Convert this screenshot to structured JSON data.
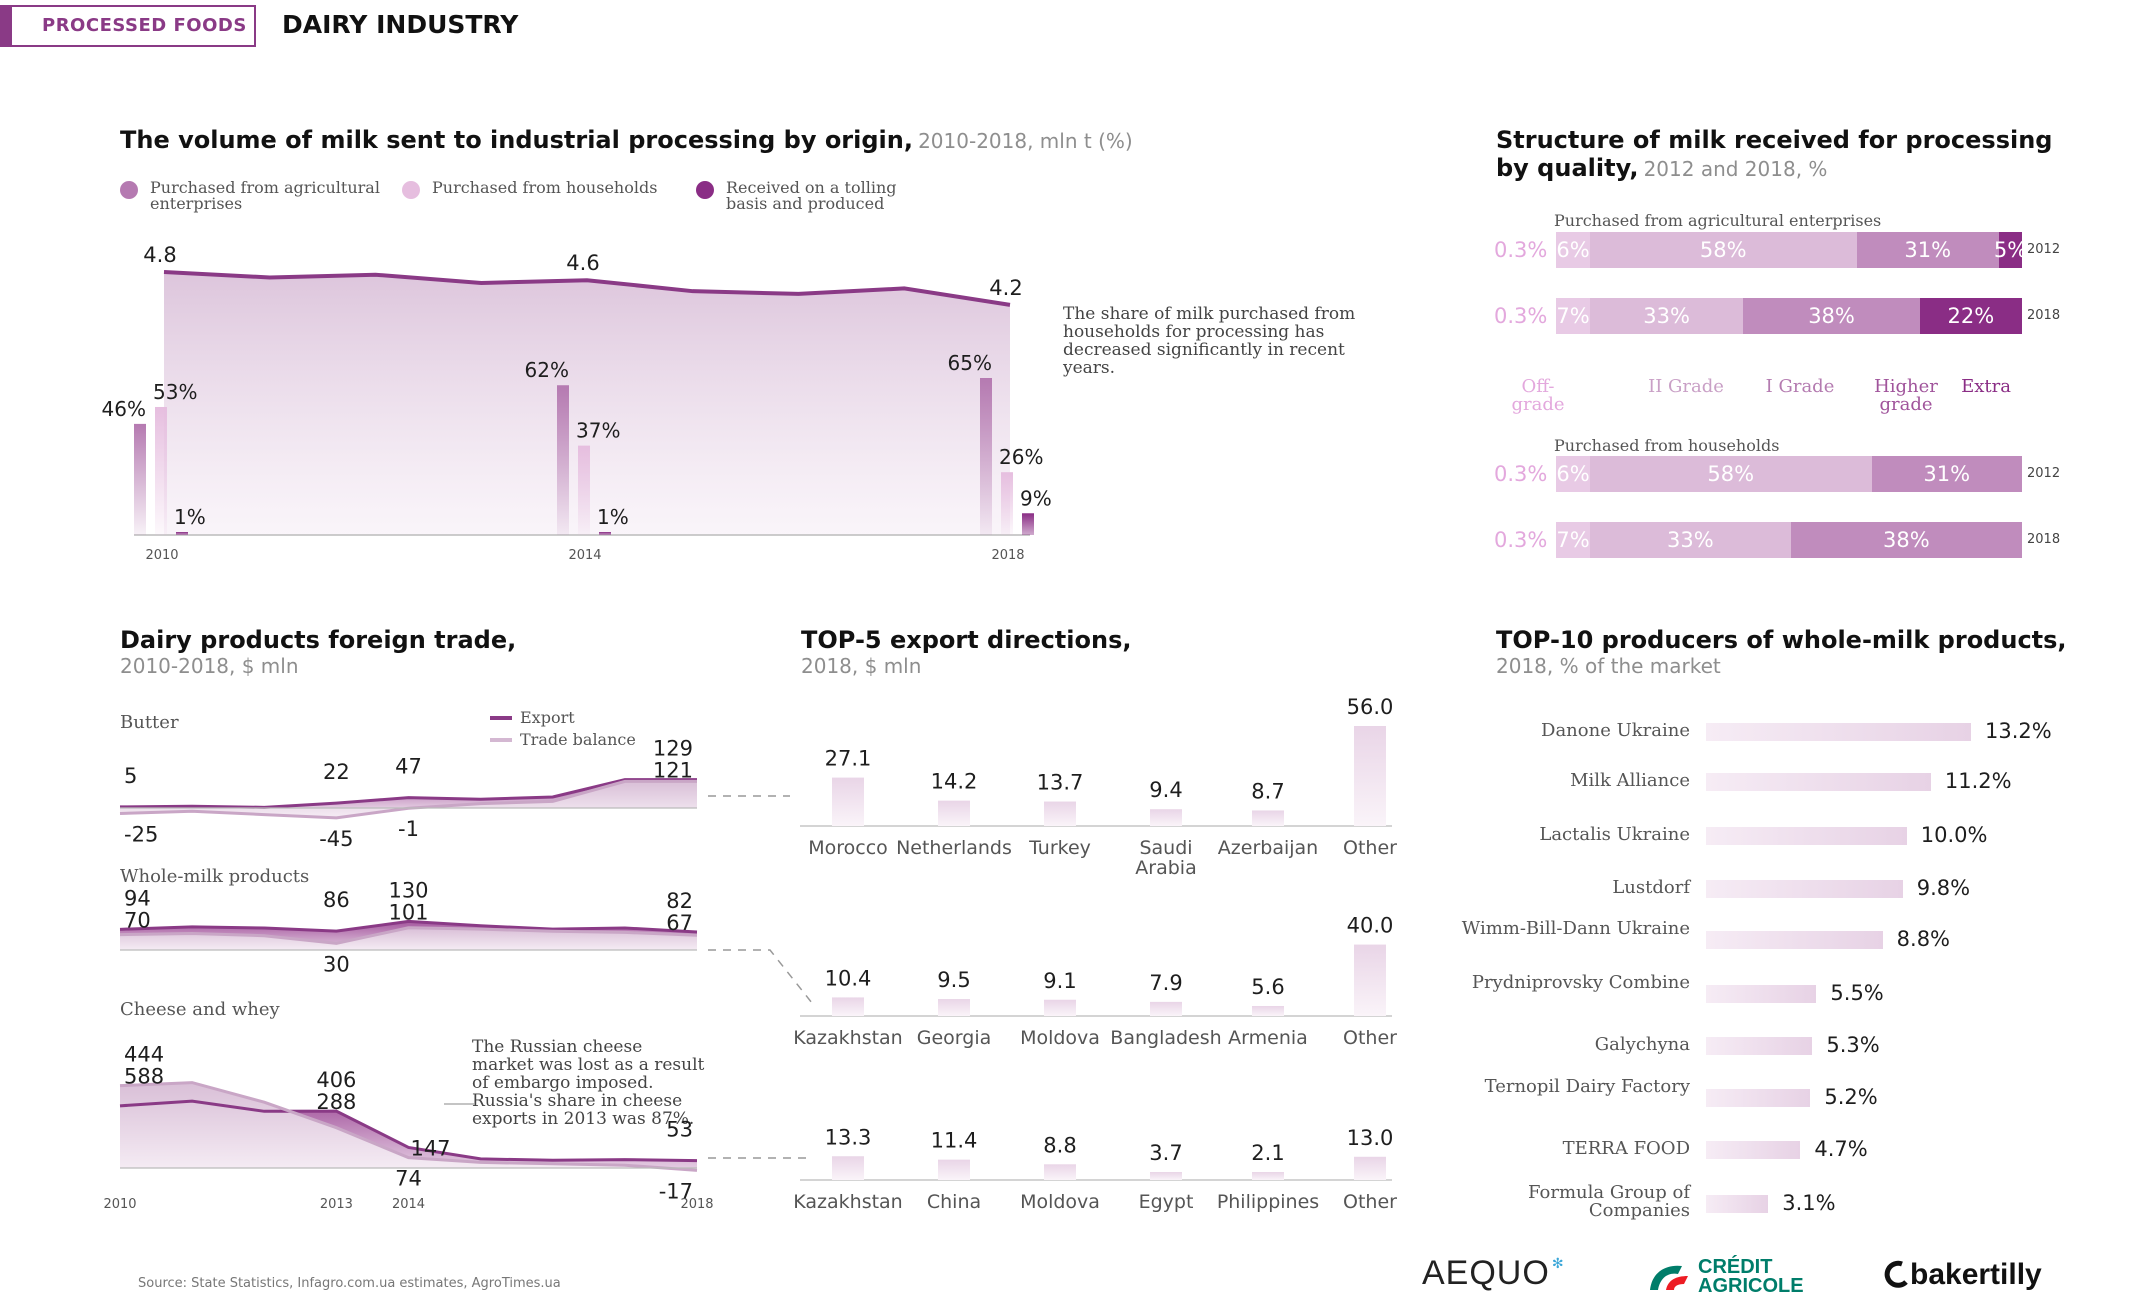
{
  "header": {
    "category": "PROCESSED FOODS",
    "title": "DAIRY INDUSTRY"
  },
  "volume": {
    "title": "The volume of milk sent to industrial processing by origin,",
    "subtitle": "2010-2018, mln t (%)",
    "legend": [
      {
        "label": "Purchased from agricultural enterprises",
        "color": "#b57ab1"
      },
      {
        "label": "Purchased from households",
        "color": "#e6bedf"
      },
      {
        "label": "Received on a tolling basis and produced",
        "color": "#8a2d85"
      }
    ],
    "note": "The share of milk purchased from households for processing has decreased significantly in recent years.",
    "colors": {
      "line": "#8a3a86",
      "area_top": "#ddc4dc",
      "bar_agri": "#b57ab1",
      "bar_house": "#e6bedf",
      "bar_toll": "#8a2d85"
    }
  },
  "quality": {
    "title": "Structure of milk received for processing",
    "title2": "by quality,",
    "subtitle": "2012 and 2018, %",
    "group1_title": "Purchased from agricultural enterprises",
    "group2_title": "Purchased from households",
    "grades": [
      "Off-grade",
      "II Grade",
      "I Grade",
      "Higher grade",
      "Extra"
    ],
    "grade_colors": [
      "#f2dff0",
      "#e8cae5",
      "#dcbbd9",
      "#c08cbd",
      "#8a2d85"
    ],
    "grade_label_colors": [
      "#e3a8dd",
      "#c9a0c6",
      "#b47bb0",
      "#a0549b",
      "#8a2d85"
    ],
    "rows": [
      {
        "group": 1,
        "year": "2012",
        "values": [
          0.3,
          6,
          58,
          31,
          5
        ],
        "labels": [
          "0.3%",
          "6%",
          "58%",
          "31%",
          "5%"
        ]
      },
      {
        "group": 1,
        "year": "2018",
        "values": [
          0.3,
          7,
          33,
          38,
          22
        ],
        "labels": [
          "0.3%",
          "7%",
          "33%",
          "38%",
          "22%"
        ]
      },
      {
        "group": 2,
        "year": "2012",
        "values": [
          0.3,
          6,
          58,
          31,
          0
        ],
        "labels": [
          "0.3%",
          "6%",
          "58%",
          "31%",
          ""
        ]
      },
      {
        "group": 2,
        "year": "2018",
        "values": [
          0.3,
          7,
          33,
          38,
          0
        ],
        "labels": [
          "0.3%",
          "7%",
          "33%",
          "38%",
          ""
        ]
      }
    ]
  },
  "trade": {
    "title": "Dairy products foreign trade,",
    "subtitle": "2010-2018, $ mln",
    "legend_export": "Export",
    "legend_balance": "Trade balance",
    "panels": [
      "Butter",
      "Whole-milk products",
      "Cheese and whey"
    ],
    "note": "The Russian cheese market was lost as a result of embargo imposed. Russia's share in cheese exports in 2013 was 87%."
  },
  "export": {
    "title": "TOP-5 export directions,",
    "subtitle": "2018, $ mln"
  },
  "producers": {
    "title": "TOP-10 producers of whole-milk products,",
    "subtitle": "2018, % of the market"
  },
  "source": "Source: State Statistics, Infagro.com.ua estimates, AgroTimes.ua",
  "logos": {
    "aequo": "AEQUO",
    "ca_line1": "CRÉDIT",
    "ca_line2": "AGRICOLE",
    "bakertilly": "bakertilly"
  },
  "chart_data": [
    {
      "type": "area",
      "name": "volume",
      "x": [
        2010,
        2011,
        2012,
        2013,
        2014,
        2015,
        2016,
        2017,
        2018
      ],
      "values": [
        4.8,
        4.7,
        4.75,
        4.6,
        4.65,
        4.45,
        4.4,
        4.5,
        4.2
      ],
      "labeled_points": [
        {
          "x": 2010,
          "label": "4.8"
        },
        {
          "x": 2014,
          "label": "4.6"
        },
        {
          "x": 2018,
          "label": "4.2"
        }
      ],
      "x_ticks": [
        "2010",
        "2014",
        "2018"
      ],
      "shares": [
        {
          "year": "2010",
          "values": [
            46,
            53,
            1
          ],
          "labels": [
            "46%",
            "53%",
            "1%"
          ]
        },
        {
          "year": "2014",
          "values": [
            62,
            37,
            1
          ],
          "labels": [
            "62%",
            "37%",
            "1%"
          ]
        },
        {
          "year": "2018",
          "values": [
            65,
            26,
            9
          ],
          "labels": [
            "65%",
            "26%",
            "9%"
          ]
        }
      ]
    },
    {
      "type": "area",
      "name": "foreign_trade",
      "x": [
        2010,
        2011,
        2012,
        2013,
        2014,
        2015,
        2016,
        2017,
        2018
      ],
      "x_ticks": [
        "2010",
        "2013",
        "2014",
        "2018"
      ],
      "panels": [
        {
          "name": "Butter",
          "export": [
            5,
            8,
            3,
            22,
            47,
            40,
            50,
            129,
            129
          ],
          "balance": [
            -25,
            -15,
            -30,
            -45,
            -1,
            20,
            30,
            121,
            121
          ],
          "labels": [
            {
              "x": 2010,
              "text": "5",
              "pos": "above"
            },
            {
              "x": 2010,
              "text": "-25",
              "pos": "below"
            },
            {
              "x": 2013,
              "text": "22",
              "pos": "above"
            },
            {
              "x": 2013,
              "text": "-45",
              "pos": "below"
            },
            {
              "x": 2014,
              "text": "47",
              "pos": "above"
            },
            {
              "x": 2014,
              "text": "-1",
              "pos": "below"
            },
            {
              "x": 2018,
              "text": "129",
              "pos": "above"
            },
            {
              "x": 2018,
              "text": "121",
              "pos": "above2"
            }
          ]
        },
        {
          "name": "Whole-milk products",
          "export": [
            94,
            105,
            100,
            86,
            130,
            110,
            95,
            100,
            82
          ],
          "balance": [
            70,
            75,
            65,
            30,
            101,
            95,
            85,
            80,
            67
          ],
          "labels": [
            {
              "x": 2010,
              "text": "94",
              "pos": "above"
            },
            {
              "x": 2010,
              "text": "70",
              "pos": "above2"
            },
            {
              "x": 2013,
              "text": "86",
              "pos": "above"
            },
            {
              "x": 2013,
              "text": "30",
              "pos": "below"
            },
            {
              "x": 2014,
              "text": "130",
              "pos": "above"
            },
            {
              "x": 2014,
              "text": "101",
              "pos": "above2"
            },
            {
              "x": 2018,
              "text": "82",
              "pos": "above"
            },
            {
              "x": 2018,
              "text": "67",
              "pos": "above2"
            }
          ]
        },
        {
          "name": "Cheese and whey",
          "export": [
            444,
            478,
            405,
            406,
            147,
            65,
            55,
            60,
            53
          ],
          "balance": [
            588,
            610,
            470,
            288,
            74,
            40,
            30,
            20,
            -17
          ],
          "labels": [
            {
              "x": 2010,
              "text": "444",
              "pos": "above"
            },
            {
              "x": 2010,
              "text": "588",
              "pos": "above2"
            },
            {
              "x": 2013,
              "text": "406",
              "pos": "above"
            },
            {
              "x": 2013,
              "text": "288",
              "pos": "above2"
            },
            {
              "x": 2014,
              "text": "147",
              "pos": "left"
            },
            {
              "x": 2014,
              "text": "74",
              "pos": "below"
            },
            {
              "x": 2018,
              "text": "53",
              "pos": "above"
            },
            {
              "x": 2018,
              "text": "-17",
              "pos": "below"
            }
          ]
        }
      ]
    },
    {
      "type": "bar",
      "name": "export_directions",
      "groups": [
        {
          "product": "Butter",
          "categories": [
            "Morocco",
            "Netherlands",
            "Turkey",
            "Saudi Arabia",
            "Azerbaijan",
            "Other"
          ],
          "values": [
            27.1,
            14.2,
            13.7,
            9.4,
            8.7,
            56.0
          ],
          "labels": [
            "27.1",
            "14.2",
            "13.7",
            "9.4",
            "8.7",
            "56.0"
          ]
        },
        {
          "product": "Whole-milk products",
          "categories": [
            "Kazakhstan",
            "Georgia",
            "Moldova",
            "Bangladesh",
            "Armenia",
            "Other"
          ],
          "values": [
            10.4,
            9.5,
            9.1,
            7.9,
            5.6,
            40.0
          ],
          "labels": [
            "10.4",
            "9.5",
            "9.1",
            "7.9",
            "5.6",
            "40.0"
          ]
        },
        {
          "product": "Cheese and whey",
          "categories": [
            "Kazakhstan",
            "China",
            "Moldova",
            "Egypt",
            "Philippines",
            "Other"
          ],
          "values": [
            13.3,
            11.4,
            8.8,
            3.7,
            2.1,
            13.0
          ],
          "labels": [
            "13.3",
            "11.4",
            "8.8",
            "3.7",
            "2.1",
            "13.0"
          ]
        }
      ]
    },
    {
      "type": "bar",
      "name": "producers",
      "categories": [
        "Danone Ukraine",
        "Milk Alliance",
        "Lactalis Ukraine",
        "Lustdorf",
        "Wimm-Bill-Dann Ukraine",
        "Prydniprovsky Combine",
        "Galychyna",
        "Ternopil Dairy Factory",
        "TERRA FOOD",
        "Formula Group of Companies"
      ],
      "values": [
        13.2,
        11.2,
        10.0,
        9.8,
        8.8,
        5.5,
        5.3,
        5.2,
        4.7,
        3.1
      ],
      "labels": [
        "13.2%",
        "11.2%",
        "10.0%",
        "9.8%",
        "8.8%",
        "5.5%",
        "5.3%",
        "5.2%",
        "4.7%",
        "3.1%"
      ]
    }
  ]
}
